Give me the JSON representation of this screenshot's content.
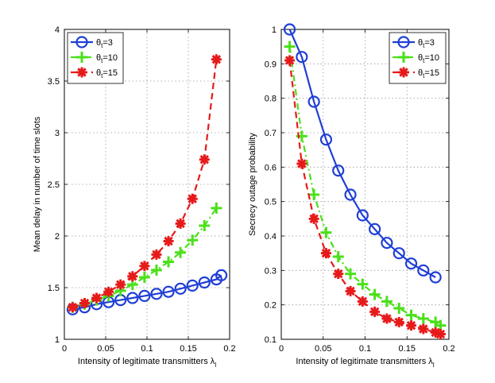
{
  "chart_data": [
    {
      "type": "line",
      "xlabel": "Intensity of legitimate transmitters λ",
      "xlabel_sub": "l",
      "ylabel": "Mean delay in number of time slots",
      "xlim": [
        0,
        0.2
      ],
      "ylim": [
        1,
        4
      ],
      "xticks": [
        "0",
        "0.05",
        "0.1",
        "0.15",
        "0.2"
      ],
      "yticks": [
        "1",
        "1.5",
        "2",
        "2.5",
        "3",
        "3.5",
        "4"
      ],
      "grid": true,
      "legend_position": "top-left",
      "x": [
        0.01,
        0.0245,
        0.039,
        0.0535,
        0.068,
        0.0825,
        0.097,
        0.1115,
        0.126,
        0.1405,
        0.155,
        0.1695,
        0.184
      ],
      "series": [
        {
          "name": "θt=3",
          "label_main": "θ",
          "label_sub": "t",
          "label_rest": "=3",
          "color": "#1f3fd6",
          "linestyle": "solid",
          "marker": "circle",
          "x": [
            0.01,
            0.0245,
            0.039,
            0.0535,
            0.068,
            0.0825,
            0.097,
            0.1115,
            0.126,
            0.1405,
            0.155,
            0.1695,
            0.184,
            0.19
          ],
          "values": [
            1.29,
            1.31,
            1.34,
            1.36,
            1.38,
            1.4,
            1.42,
            1.44,
            1.46,
            1.49,
            1.52,
            1.55,
            1.58,
            1.62
          ]
        },
        {
          "name": "θt=10",
          "label_main": "θ",
          "label_sub": "t",
          "label_rest": "=10",
          "color": "#4be01a",
          "linestyle": "dashdot",
          "marker": "plus",
          "x": [
            0.01,
            0.0245,
            0.039,
            0.0535,
            0.068,
            0.0825,
            0.097,
            0.1115,
            0.126,
            0.1405,
            0.155,
            0.1695,
            0.184
          ],
          "values": [
            1.31,
            1.34,
            1.38,
            1.42,
            1.47,
            1.53,
            1.6,
            1.67,
            1.75,
            1.84,
            1.96,
            2.1,
            2.27
          ]
        },
        {
          "name": "θt=15",
          "label_main": "θ",
          "label_sub": "t",
          "label_rest": "=15",
          "color": "#e61a1a",
          "linestyle": "dashed",
          "marker": "star",
          "x": [
            0.01,
            0.0245,
            0.039,
            0.0535,
            0.068,
            0.0825,
            0.097,
            0.1115,
            0.126,
            0.1405,
            0.155,
            0.1695,
            0.184
          ],
          "values": [
            1.31,
            1.35,
            1.4,
            1.46,
            1.53,
            1.61,
            1.71,
            1.82,
            1.95,
            2.12,
            2.36,
            2.74,
            3.71
          ]
        }
      ]
    },
    {
      "type": "line",
      "xlabel": "Intensity of legitimate transmitters λ",
      "xlabel_sub": "l",
      "ylabel": "Secrecy outage probability",
      "xlim": [
        0,
        0.2
      ],
      "ylim": [
        0.1,
        1
      ],
      "xticks": [
        "0",
        "0.05",
        "0.1",
        "0.15",
        "0.2"
      ],
      "yticks": [
        "0.1",
        "0.2",
        "0.3",
        "0.4",
        "0.5",
        "0.6",
        "0.7",
        "0.8",
        "0.9",
        "1"
      ],
      "grid": true,
      "legend_position": "top-right",
      "series": [
        {
          "name": "θt=3",
          "label_main": "θ",
          "label_sub": "t",
          "label_rest": "=3",
          "color": "#1f3fd6",
          "linestyle": "solid",
          "marker": "circle",
          "x": [
            0.01,
            0.0245,
            0.039,
            0.0535,
            0.068,
            0.0825,
            0.097,
            0.1115,
            0.126,
            0.1405,
            0.155,
            0.1695,
            0.184
          ],
          "values": [
            1.0,
            0.92,
            0.79,
            0.68,
            0.59,
            0.52,
            0.46,
            0.42,
            0.38,
            0.35,
            0.32,
            0.3,
            0.28
          ]
        },
        {
          "name": "θt=10",
          "label_main": "θ",
          "label_sub": "t",
          "label_rest": "=10",
          "color": "#4be01a",
          "linestyle": "dashdot",
          "marker": "plus",
          "x": [
            0.01,
            0.0245,
            0.039,
            0.0535,
            0.068,
            0.0825,
            0.097,
            0.1115,
            0.126,
            0.1405,
            0.155,
            0.1695,
            0.184,
            0.19
          ],
          "values": [
            0.95,
            0.69,
            0.52,
            0.41,
            0.34,
            0.29,
            0.26,
            0.23,
            0.21,
            0.19,
            0.17,
            0.16,
            0.15,
            0.14
          ]
        },
        {
          "name": "θt=15",
          "label_main": "θ",
          "label_sub": "t",
          "label_rest": "=15",
          "color": "#e61a1a",
          "linestyle": "dashed",
          "marker": "star",
          "x": [
            0.01,
            0.0245,
            0.039,
            0.0535,
            0.068,
            0.0825,
            0.097,
            0.1115,
            0.126,
            0.1405,
            0.155,
            0.1695,
            0.184,
            0.19
          ],
          "values": [
            0.91,
            0.61,
            0.45,
            0.35,
            0.29,
            0.24,
            0.21,
            0.18,
            0.16,
            0.15,
            0.14,
            0.13,
            0.12,
            0.115
          ]
        }
      ]
    }
  ]
}
